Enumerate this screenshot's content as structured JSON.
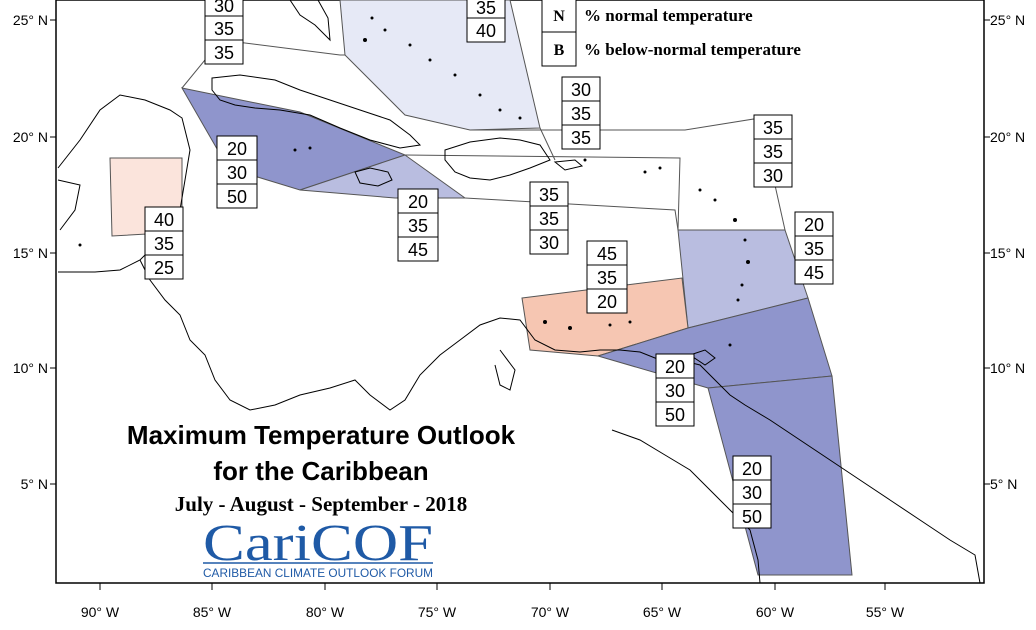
{
  "title": {
    "line1": "Maximum Temperature Outlook",
    "line2": "for the Caribbean",
    "period": "July - August - September - 2018"
  },
  "logo": {
    "name": "CariCOF",
    "tagline": "CARIBBEAN CLIMATE OUTLOOK FORUM"
  },
  "legend": [
    {
      "key": "N",
      "text": "% normal temperature"
    },
    {
      "key": "B",
      "text": "% below-normal temperature"
    }
  ],
  "axes": {
    "lat_labels": [
      "25° N",
      "20° N",
      "15° N",
      "10° N",
      "5° N"
    ],
    "lon_labels": [
      "90° W",
      "85° W",
      "80° W",
      "75° W",
      "70° W",
      "65° W",
      "60° W",
      "55° W"
    ]
  },
  "colors": {
    "below_light": "#e6e9f6",
    "below_mid": "#b9bde0",
    "below_strong": "#8f95cc",
    "above_light": "#fbe4dc",
    "above_mid": "#f6c6b2"
  },
  "regions": [
    {
      "id": "gulf-north",
      "values": [
        "30",
        "35",
        "35"
      ]
    },
    {
      "id": "bahamas",
      "values": [
        "35",
        "40"
      ]
    },
    {
      "id": "turks-caicos",
      "values": [
        "30",
        "35",
        "35"
      ]
    },
    {
      "id": "cuba",
      "values": [
        "20",
        "30",
        "50"
      ]
    },
    {
      "id": "belize",
      "values": [
        "40",
        "35",
        "25"
      ]
    },
    {
      "id": "jamaica",
      "values": [
        "20",
        "35",
        "45"
      ]
    },
    {
      "id": "hispaniola",
      "values": [
        "35",
        "35",
        "30"
      ]
    },
    {
      "id": "northern-leewards",
      "values": [
        "35",
        "35",
        "30"
      ]
    },
    {
      "id": "southern-leewards",
      "values": [
        "20",
        "35",
        "45"
      ]
    },
    {
      "id": "abc-islands",
      "values": [
        "45",
        "35",
        "20"
      ]
    },
    {
      "id": "trinidad-windwards",
      "values": [
        "20",
        "30",
        "50"
      ]
    },
    {
      "id": "guianas",
      "values": [
        "20",
        "30",
        "50"
      ]
    }
  ]
}
